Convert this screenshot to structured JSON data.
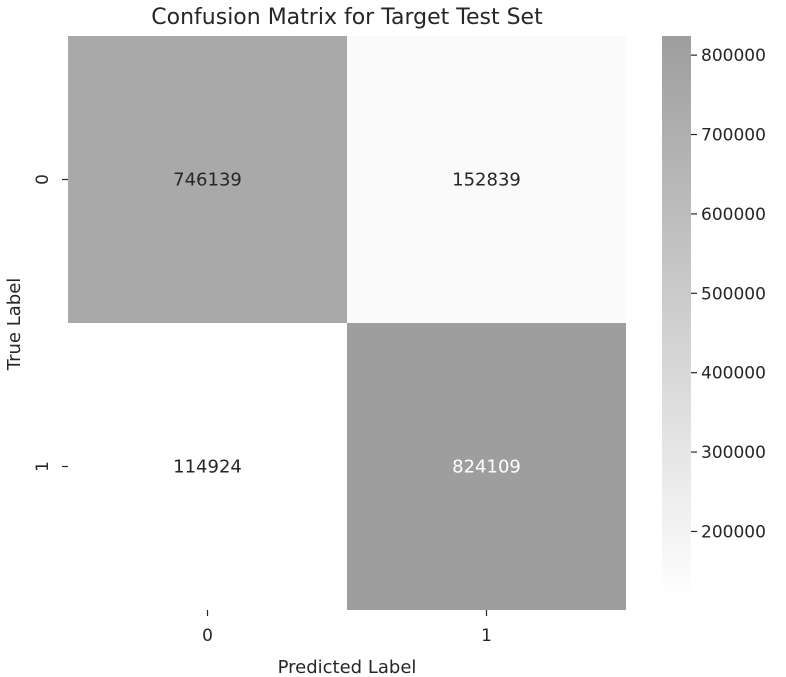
{
  "chart_data": {
    "type": "heatmap",
    "title": "Confusion Matrix for Target Test Set",
    "xlabel": "Predicted Label",
    "ylabel": "True Label",
    "x_categories": [
      "0",
      "1"
    ],
    "y_categories": [
      "0",
      "1"
    ],
    "values": [
      [
        746139,
        152839
      ],
      [
        114924,
        824109
      ]
    ],
    "colorbar": {
      "min": 114924,
      "max": 824109,
      "ticks": [
        200000,
        300000,
        400000,
        500000,
        600000,
        700000,
        800000
      ],
      "tick_labels": [
        "200000",
        "300000",
        "400000",
        "500000",
        "600000",
        "700000",
        "800000"
      ],
      "low_color": "#ffffff",
      "high_color": "#9e9e9e"
    },
    "grid": false
  }
}
